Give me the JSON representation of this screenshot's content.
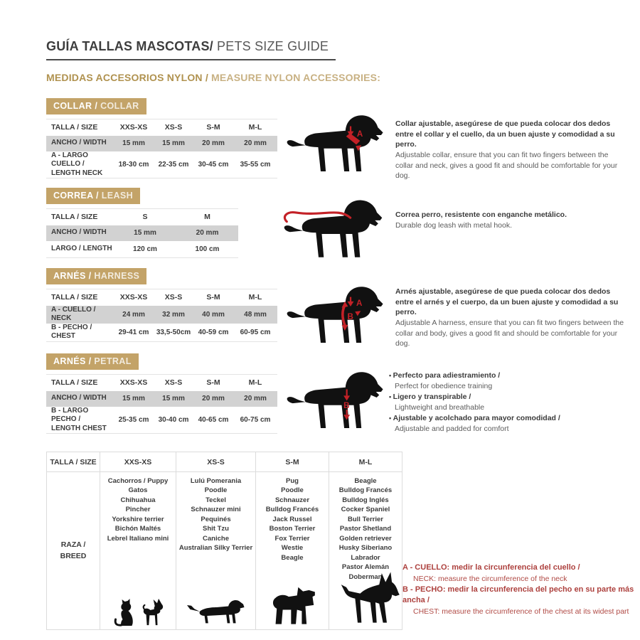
{
  "header": {
    "title_es": "GUÍA TALLAS MASCOTAS/",
    "title_en": " PETS SIZE GUIDE",
    "subtitle_es": "MEDIDAS ACCESORIOS NYLON / ",
    "subtitle_en": "MEASURE NYLON ACCESSORIES:"
  },
  "colors": {
    "gold": "#c3a368",
    "accent_red": "#c32127",
    "note_red": "#b04a45",
    "row_gray": "#d2d2d2"
  },
  "collar": {
    "header_es": "COLLAR / ",
    "header_en": "COLLAR",
    "table": {
      "col_headers": [
        "TALLA / SIZE",
        "XXS-XS",
        "XS-S",
        "S-M",
        "M-L"
      ],
      "rows": [
        {
          "label": "ANCHO / WIDTH",
          "values": [
            "15 mm",
            "15 mm",
            "20 mm",
            "20 mm"
          ]
        },
        {
          "label": "A - LARGO CUELLO /\nLENGTH NECK",
          "values": [
            "18-30 cm",
            "22-35 cm",
            "30-45 cm",
            "35-55 cm"
          ]
        }
      ]
    },
    "desc_es": "Collar ajustable, asegúrese de que pueda colocar dos dedos entre el collar y el cuello, da un buen ajuste y comodidad a su perro.",
    "desc_en": "Adjustable collar, ensure that you can fit two fingers between the collar and neck, gives a good fit and should be comfortable for your dog."
  },
  "leash": {
    "header_es": "CORREA / ",
    "header_en": "LEASH",
    "table": {
      "col_headers": [
        "TALLA / SIZE",
        "S",
        "M"
      ],
      "rows": [
        {
          "label": "ANCHO / WIDTH",
          "values": [
            "15 mm",
            "20 mm"
          ]
        },
        {
          "label": "LARGO / LENGTH",
          "values": [
            "120 cm",
            "100 cm"
          ]
        }
      ]
    },
    "desc_es": "Correa perro, resistente con enganche metálico.",
    "desc_en": "Durable dog leash with metal hook."
  },
  "harness": {
    "header_es": "ARNÉS / ",
    "header_en": "HARNESS",
    "table": {
      "col_headers": [
        "TALLA / SIZE",
        "XXS-XS",
        "XS-S",
        "S-M",
        "M-L"
      ],
      "rows": [
        {
          "label": "A - CUELLO / NECK",
          "values": [
            "24 mm",
            "32 mm",
            "40 mm",
            "48 mm"
          ]
        },
        {
          "label": "B - PECHO / CHEST",
          "values": [
            "29-41 cm",
            "33,5-50cm",
            "40-59 cm",
            "60-95 cm"
          ]
        }
      ]
    },
    "desc_es": "Arnés ajustable, asegúrese de que pueda colocar dos dedos entre el arnés y el cuerpo, da un buen ajuste y comodidad a su perro.",
    "desc_en": "Adjustable A harness, ensure that you can fit two fingers between the collar and body, gives a good fit and should be comfortable for your dog."
  },
  "petral": {
    "header_es": "ARNÉS / ",
    "header_en": "PETRAL",
    "table": {
      "col_headers": [
        "TALLA / SIZE",
        "XXS-XS",
        "XS-S",
        "S-M",
        "M-L"
      ],
      "rows": [
        {
          "label": "ANCHO / WIDTH",
          "values": [
            "15 mm",
            "15 mm",
            "20 mm",
            "20 mm"
          ]
        },
        {
          "label": "B - LARGO PECHO /\nLENGTH CHEST",
          "values": [
            "25-35 cm",
            "30-40 cm",
            "40-65 cm",
            "60-75 cm"
          ]
        }
      ]
    },
    "bullets": [
      {
        "es": "Perfecto para adiestramiento /",
        "en": "Perfect for obedience training"
      },
      {
        "es": "Ligero y transpirable /",
        "en": "Lightweight and breathable"
      },
      {
        "es": "Ajustable y acolchado para mayor comodidad /",
        "en": "Adjustable and padded for comfort"
      }
    ]
  },
  "breeds": {
    "col_headers": [
      "TALLA /  SIZE",
      "XXS-XS",
      "XS-S",
      "S-M",
      "M-L"
    ],
    "row_label": "RAZA /\nBREED",
    "columns": [
      {
        "size": "XXS-XS",
        "breeds": [
          "Cachorros / Puppy",
          "Gatos",
          "Chihuahua",
          "Pincher",
          "Yorkshire terrier",
          "Bichón Maltés",
          "Lebrel Italiano mini"
        ]
      },
      {
        "size": "XS-S",
        "breeds": [
          "Lulú Pomerania",
          "Poodle",
          "Teckel",
          "Schnauzer mini",
          "Pequinés",
          "Shit Tzu",
          "Caniche",
          "Australian Silky Terrier"
        ]
      },
      {
        "size": "S-M",
        "breeds": [
          "Pug",
          "Poodle",
          "Schnauzer",
          "Bulldog Francés",
          "Jack Russel",
          "Boston Terrier",
          "Fox Terrier",
          "Westie",
          "Beagle"
        ]
      },
      {
        "size": "M-L",
        "breeds": [
          "Beagle",
          "Bulldog Francés",
          "Bulldog Inglés",
          "Cocker Spaniel",
          "Bull Terrier",
          "Pastor Shetland",
          "Golden retriever",
          "Husky Siberiano",
          "Labrador",
          "Pastor Alemán",
          "Doberman"
        ]
      }
    ]
  },
  "notes": [
    {
      "bold": "A - CUELLO: medir la circunferencia del cuello /",
      "regular": "NECK: measure the circumference of the neck"
    },
    {
      "bold": "B - PECHO: medir la circunferencia del pecho en su parte más ancha /",
      "regular": "CHEST: measure the circumference of the chest at its widest part"
    }
  ],
  "dog_labels": {
    "a": "A",
    "b": "B"
  }
}
